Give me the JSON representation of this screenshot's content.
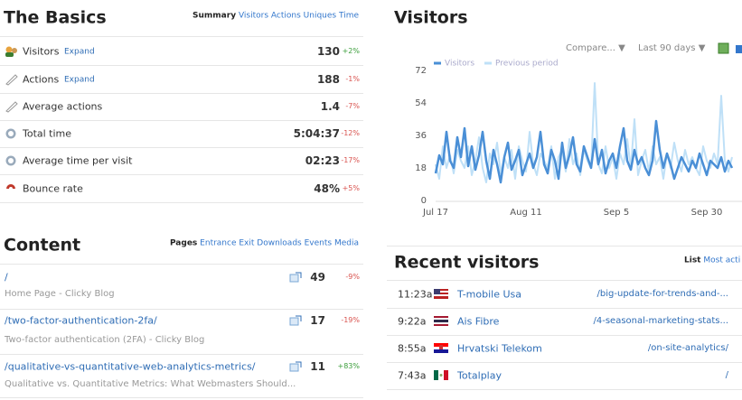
{
  "basics": {
    "title": "The Basics",
    "tabs": [
      "Summary",
      "Visitors",
      "Actions",
      "Uniques",
      "Time"
    ],
    "rows": [
      {
        "label": "Visitors",
        "link": "Expand",
        "value": "130",
        "change": "+2%"
      },
      {
        "label": "Actions",
        "link": "Expand",
        "value": "188",
        "change": "-1%"
      },
      {
        "label": "Average actions",
        "value": "1.4",
        "change": "-7%"
      },
      {
        "label": "Total time",
        "value": "5:04:37",
        "change": "-12%"
      },
      {
        "label": "Average time per visit",
        "value": "02:23",
        "change": "-17%"
      },
      {
        "label": "Bounce rate",
        "value": "48%",
        "change": "+5%"
      }
    ]
  },
  "content": {
    "title": "Content",
    "tabs": [
      "Pages",
      "Entrance",
      "Exit",
      "Downloads",
      "Events",
      "Media"
    ],
    "rows": [
      {
        "path": "/",
        "title": "Home Page - Clicky Blog",
        "value": "49",
        "change": "-9%"
      },
      {
        "path": "/two-factor-authentication-2fa/",
        "title": "Two-factor authentication (2FA) - Clicky Blog",
        "value": "17",
        "change": "-19%"
      },
      {
        "path": "/qualitative-vs-quantitative-web-analytics-metrics/",
        "title": "Qualitative vs. Quantitative Metrics: What Webmasters Should...",
        "value": "11",
        "change": "+83%"
      }
    ]
  },
  "visitors": {
    "title": "Visitors",
    "controls": [
      "Compare... ▼",
      "Last 90 days ▼"
    ],
    "chart_data": {
      "type": "line",
      "grid": false,
      "categories": [
        "Jul 17",
        null,
        null,
        null,
        null,
        null,
        null,
        null,
        null,
        null,
        null,
        null,
        null,
        null,
        null,
        null,
        null,
        null,
        null,
        null,
        null,
        null,
        null,
        null,
        null,
        "Aug 11",
        null,
        null,
        null,
        null,
        null,
        null,
        null,
        null,
        null,
        null,
        null,
        null,
        null,
        null,
        null,
        null,
        null,
        null,
        null,
        null,
        null,
        null,
        null,
        null,
        "Sep 5",
        null,
        null,
        null,
        null,
        null,
        null,
        null,
        null,
        null,
        null,
        null,
        null,
        null,
        null,
        null,
        null,
        null,
        null,
        null,
        null,
        null,
        null,
        null,
        null,
        "Sep 30",
        null,
        null,
        null,
        null,
        null,
        null,
        null
      ],
      "ylim": [
        0,
        72
      ],
      "yticks": [
        0,
        18,
        36,
        54,
        72
      ],
      "series": [
        {
          "name": "Previous period",
          "color": "#bfe0f7",
          "values": [
            20,
            12,
            30,
            18,
            25,
            15,
            28,
            22,
            18,
            30,
            14,
            22,
            35,
            18,
            10,
            26,
            20,
            32,
            15,
            24,
            18,
            28,
            12,
            30,
            22,
            16,
            38,
            20,
            14,
            26,
            22,
            18,
            30,
            12,
            24,
            28,
            16,
            34,
            20,
            26,
            14,
            28,
            22,
            18,
            65,
            20,
            15,
            30,
            18,
            24,
            12,
            26,
            20,
            34,
            18,
            45,
            14,
            22,
            28,
            16,
            30,
            20,
            24,
            12,
            26,
            18,
            32,
            22,
            16,
            28,
            20,
            24,
            18,
            14,
            30,
            22,
            18,
            26,
            20,
            58,
            22,
            16,
            24
          ]
        },
        {
          "name": "Visitors",
          "color": "#4a8fd6",
          "values": [
            15,
            25,
            20,
            38,
            22,
            18,
            35,
            24,
            40,
            19,
            30,
            17,
            25,
            38,
            22,
            12,
            28,
            20,
            10,
            24,
            32,
            17,
            22,
            28,
            14,
            20,
            26,
            18,
            24,
            38,
            20,
            15,
            28,
            22,
            12,
            32,
            18,
            25,
            35,
            20,
            16,
            30,
            24,
            18,
            34,
            20,
            28,
            15,
            22,
            26,
            18,
            30,
            40,
            22,
            17,
            28,
            20,
            24,
            18,
            14,
            22,
            44,
            28,
            18,
            26,
            20,
            12,
            18,
            24,
            20,
            16,
            22,
            18,
            26,
            20,
            14,
            22,
            20,
            18,
            24,
            16,
            22,
            18
          ]
        }
      ]
    }
  },
  "recent": {
    "title": "Recent visitors",
    "tabs": [
      "List",
      "Most acti"
    ],
    "rows": [
      {
        "time": "11:23a",
        "isp": "T-mobile Usa",
        "path": "/big-update-for-trends-and-..."
      },
      {
        "time": "9:22a",
        "isp": "Ais Fibre",
        "path": "/4-seasonal-marketing-stats..."
      },
      {
        "time": "8:55a",
        "isp": "Hrvatski Telekom",
        "path": "/on-site-analytics/"
      },
      {
        "time": "7:43a",
        "isp": "Totalplay",
        "path": "/"
      }
    ]
  }
}
